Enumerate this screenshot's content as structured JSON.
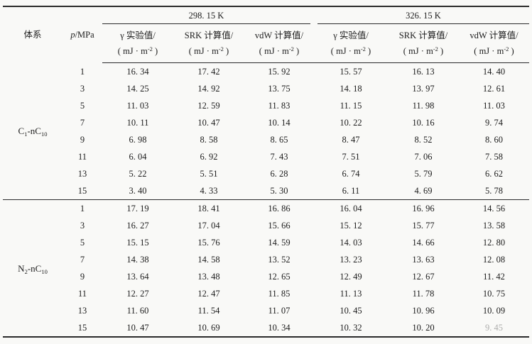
{
  "page": {
    "background": "#f9f9f7",
    "rule_color": "#2b2b2b"
  },
  "table": {
    "col1_header": "体系",
    "p_header": {
      "italic": "p",
      "rest": "/MPa"
    },
    "temp_groups": [
      {
        "label": "298. 15 K"
      },
      {
        "label": "326. 15 K"
      }
    ],
    "measure_headers": [
      {
        "line1": "γ 实验值/"
      },
      {
        "line1": "SRK 计算值/"
      },
      {
        "line1": "vdW 计算值/"
      }
    ],
    "unit": {
      "pre": "( mJ · m",
      "sup": "-2",
      "post": " )"
    },
    "sections": [
      {
        "label_parts": {
          "base1": "C",
          "sub1": "1",
          "mid": "-nC",
          "sub2": "10"
        },
        "rows": [
          {
            "p": "1",
            "values": [
              "16. 34",
              "17. 42",
              "15. 92",
              "15. 57",
              "16. 13",
              "14. 40"
            ]
          },
          {
            "p": "3",
            "values": [
              "14. 25",
              "14. 92",
              "13. 75",
              "14. 18",
              "13. 97",
              "12. 61"
            ]
          },
          {
            "p": "5",
            "values": [
              "11. 03",
              "12. 59",
              "11. 83",
              "11. 15",
              "11. 98",
              "11. 03"
            ]
          },
          {
            "p": "7",
            "values": [
              "10. 11",
              "10. 47",
              "10. 14",
              "10. 22",
              "10. 16",
              "9. 74"
            ]
          },
          {
            "p": "9",
            "values": [
              "6. 98",
              "8. 58",
              "8. 65",
              "8. 47",
              "8. 52",
              "8. 60"
            ]
          },
          {
            "p": "11",
            "values": [
              "6. 04",
              "6. 92",
              "7. 43",
              "7. 51",
              "7. 06",
              "7. 58"
            ]
          },
          {
            "p": "13",
            "values": [
              "5. 22",
              "5. 51",
              "6. 28",
              "6. 74",
              "5. 79",
              "6. 62"
            ]
          },
          {
            "p": "15",
            "values": [
              "3. 40",
              "4. 33",
              "5. 30",
              "6. 11",
              "4. 69",
              "5. 78"
            ]
          }
        ]
      },
      {
        "label_parts": {
          "base1": "N",
          "sub1": "2",
          "mid": "-nC",
          "sub2": "10"
        },
        "rows": [
          {
            "p": "1",
            "values": [
              "17. 19",
              "18. 41",
              "16. 86",
              "16. 04",
              "16. 96",
              "14. 56"
            ]
          },
          {
            "p": "3",
            "values": [
              "16. 27",
              "17. 04",
              "15. 66",
              "15. 12",
              "15. 77",
              "13. 58"
            ]
          },
          {
            "p": "5",
            "values": [
              "15. 15",
              "15. 76",
              "14. 59",
              "14. 03",
              "14. 66",
              "12. 80"
            ]
          },
          {
            "p": "7",
            "values": [
              "14. 38",
              "14. 58",
              "13. 52",
              "13. 23",
              "13. 63",
              "12. 08"
            ]
          },
          {
            "p": "9",
            "values": [
              "13. 64",
              "13. 48",
              "12. 65",
              "12. 49",
              "12. 67",
              "11. 42"
            ]
          },
          {
            "p": "11",
            "values": [
              "12. 27",
              "12. 47",
              "11. 85",
              "11. 13",
              "11. 78",
              "10. 75"
            ]
          },
          {
            "p": "13",
            "values": [
              "11. 60",
              "11. 54",
              "11. 07",
              "10. 45",
              "10. 96",
              "10. 09"
            ]
          },
          {
            "p": "15",
            "values": [
              "10. 47",
              "10. 69",
              "10. 34",
              "10. 32",
              "10. 20",
              "9. 45"
            ]
          }
        ]
      }
    ],
    "last_cell_faded": true
  }
}
